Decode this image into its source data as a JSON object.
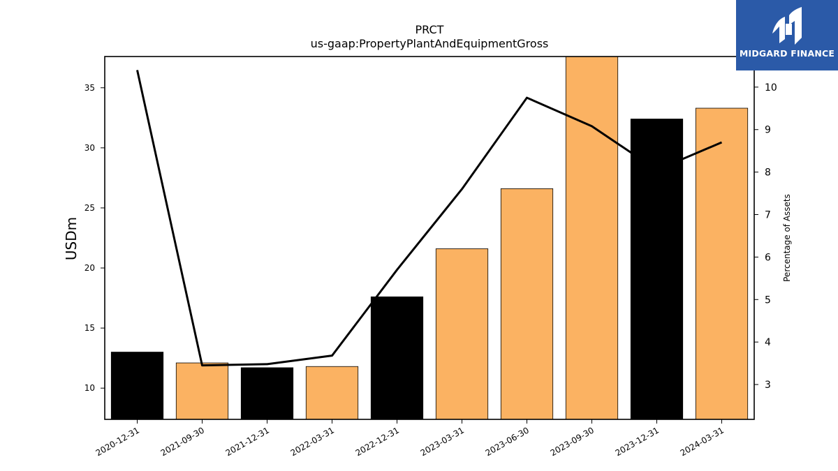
{
  "chart_data": {
    "type": "bar",
    "title": "PRCT",
    "subtitle": "us-gaap:PropertyPlantAndEquipmentGross",
    "ylabel": "USDm",
    "y2label": "Percentage of Assets",
    "categories": [
      "2020-12-31",
      "2021-09-30",
      "2021-12-31",
      "2022-03-31",
      "2022-12-31",
      "2023-03-31",
      "2023-06-30",
      "2023-09-30",
      "2023-12-31",
      "2024-03-31"
    ],
    "values": [
      13.0,
      12.1,
      11.7,
      11.8,
      17.6,
      21.6,
      26.6,
      37.8,
      32.4,
      33.3
    ],
    "bar_colors": [
      "#000000",
      "#fbb262",
      "#000000",
      "#fbb262",
      "#000000",
      "#fbb262",
      "#fbb262",
      "#fbb262",
      "#000000",
      "#fbb262"
    ],
    "line_series": {
      "values": [
        10.4,
        3.45,
        3.48,
        3.68,
        5.7,
        7.6,
        9.75,
        9.08,
        8.05,
        8.7
      ]
    },
    "ylim": [
      7.4,
      37.6
    ],
    "y2lim": [
      2.18,
      10.72
    ],
    "yticks": [
      10,
      15,
      20,
      25,
      30,
      35
    ],
    "y2ticks": [
      3,
      4,
      5,
      6,
      7,
      8,
      9,
      10
    ],
    "grid": false
  },
  "logo": {
    "text": "MIDGARD FINANCE",
    "icon": "midgard-logo-icon",
    "bg_color": "#2b5aa8"
  }
}
